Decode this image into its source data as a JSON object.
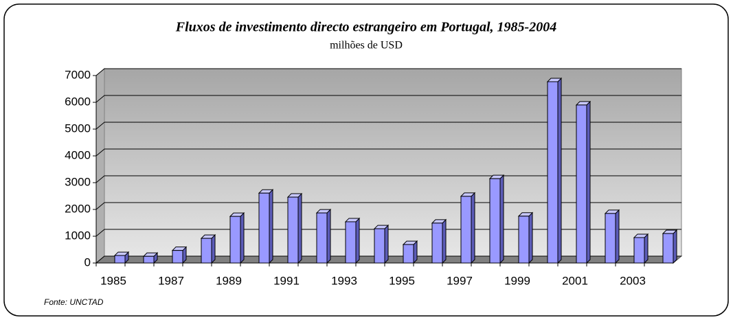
{
  "chart_data": {
    "type": "bar3d",
    "title": "Fluxos de investimento directo estrangeiro em Portugal, 1985-2004",
    "subtitle": "milhões de USD",
    "source": "Fonte: UNCTAD",
    "categories": [
      "1985",
      null,
      "1987",
      null,
      "1989",
      null,
      "1991",
      null,
      "1993",
      null,
      "1995",
      null,
      "1997",
      null,
      "1999",
      null,
      "2001",
      null,
      "2003",
      null
    ],
    "values": [
      280,
      250,
      470,
      920,
      1740,
      2610,
      2460,
      1870,
      1540,
      1280,
      690,
      1490,
      2490,
      3150,
      1750,
      6770,
      5900,
      1850,
      950,
      1100
    ],
    "color": "#9999ff",
    "ylim": [
      0,
      7000
    ],
    "yticks": [
      0,
      1000,
      2000,
      3000,
      4000,
      5000,
      6000,
      7000
    ],
    "grid": true
  }
}
